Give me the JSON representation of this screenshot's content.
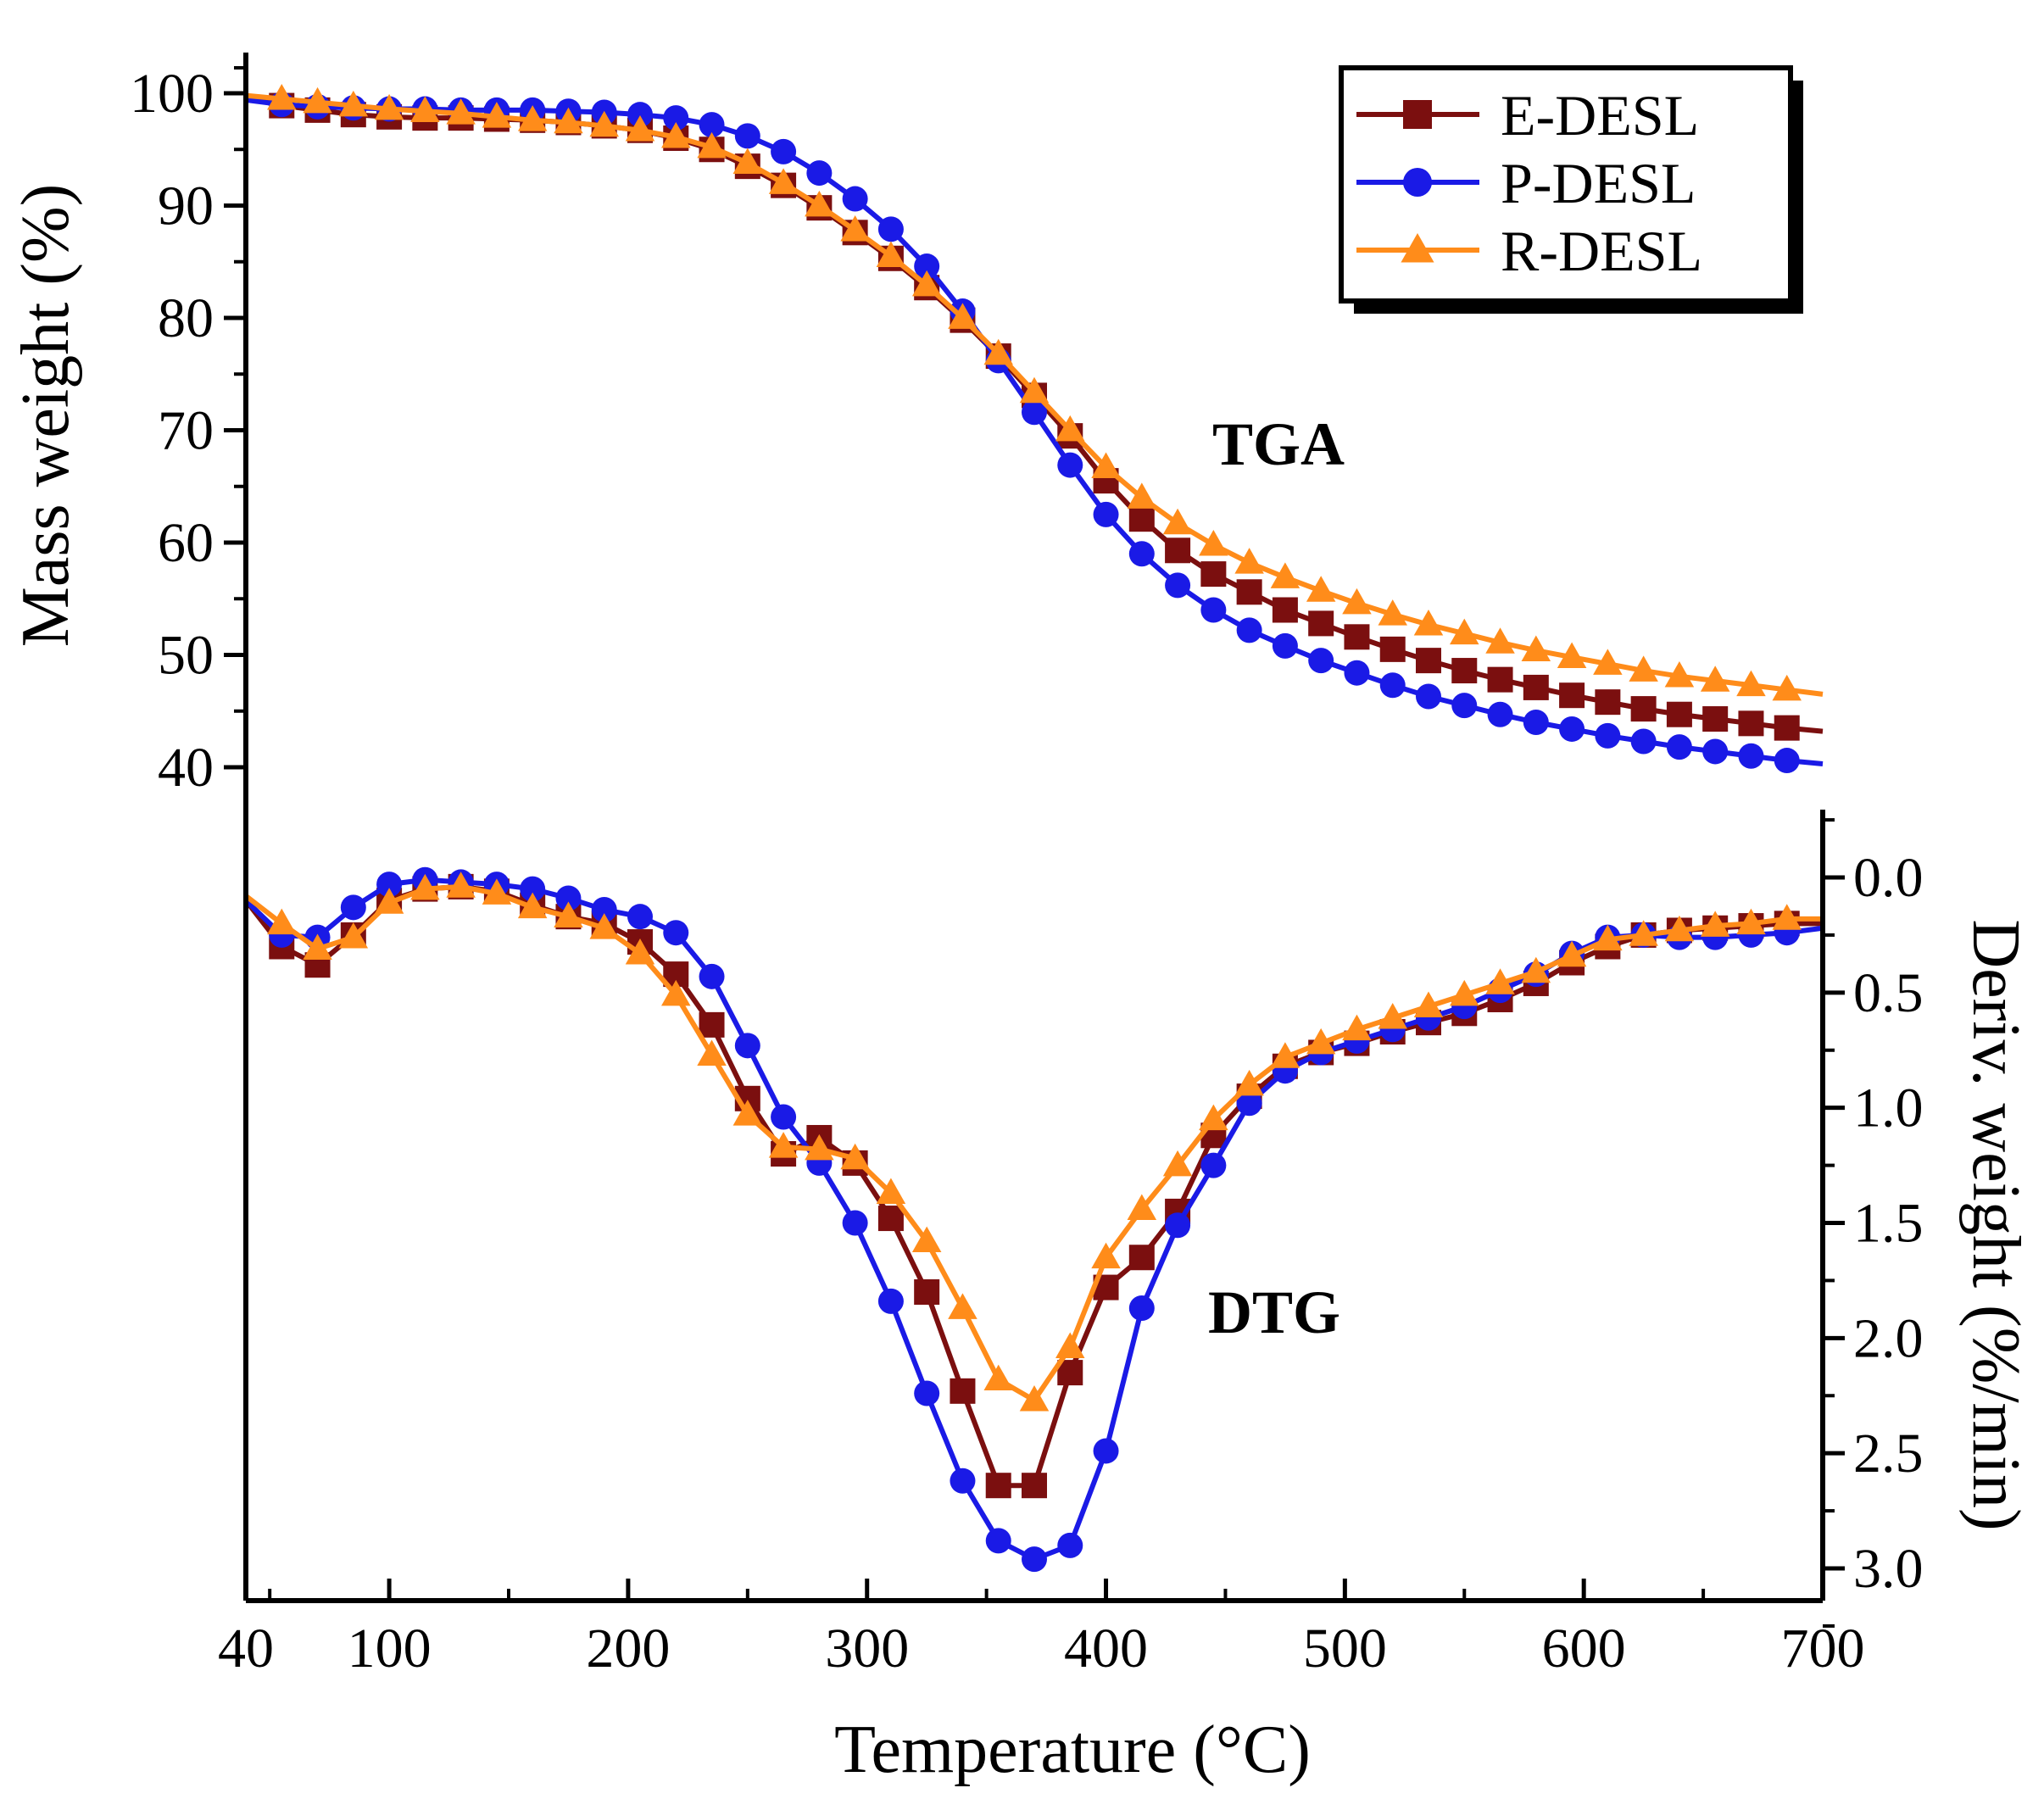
{
  "chart_data": {
    "type": "line",
    "xlabel": "Temperature (°C)",
    "ylabel_left": "Mass weight (%)",
    "ylabel_right": "Deriv. weight (%/min)",
    "xlim": [
      40,
      700
    ],
    "ylim_left": [
      40,
      100
    ],
    "ylim_right": [
      0.0,
      3.0
    ],
    "x_ticks": [
      40,
      100,
      200,
      300,
      400,
      500,
      600,
      700
    ],
    "y_left_ticks": [
      40,
      50,
      60,
      70,
      80,
      90,
      100
    ],
    "y_right_ticks": [
      "0.0",
      "0.5",
      "1.0",
      "1.5",
      "2.0",
      "2.5",
      "3.0"
    ],
    "annotations": {
      "tga": "TGA",
      "dtg": "DTG"
    },
    "legend_position": "top-right",
    "grid": false,
    "legend": [
      {
        "name": "E-DESL",
        "color": "#7b0f0f",
        "marker": "square"
      },
      {
        "name": "P-DESL",
        "color": "#1a1ae6",
        "marker": "circle"
      },
      {
        "name": "R-DESL",
        "color": "#ff8c1a",
        "marker": "triangle"
      }
    ],
    "tga_series": [
      {
        "name": "E-DESL",
        "color": "#7b0f0f",
        "marker": "square",
        "x": [
          40,
          55,
          70,
          85,
          100,
          115,
          130,
          145,
          160,
          175,
          190,
          205,
          220,
          235,
          250,
          265,
          280,
          295,
          310,
          325,
          340,
          355,
          370,
          385,
          400,
          415,
          430,
          445,
          460,
          475,
          490,
          505,
          520,
          535,
          550,
          565,
          580,
          595,
          610,
          625,
          640,
          655,
          670,
          685,
          700
        ],
        "y": [
          99.6,
          98.9,
          98.5,
          98.1,
          97.9,
          97.8,
          97.8,
          97.7,
          97.6,
          97.4,
          97.1,
          96.7,
          96.0,
          95.0,
          93.5,
          91.8,
          89.8,
          87.6,
          85.3,
          82.7,
          79.8,
          76.6,
          73.1,
          69.5,
          65.5,
          62.1,
          59.3,
          57.2,
          55.6,
          54.0,
          52.8,
          51.6,
          50.5,
          49.5,
          48.6,
          47.8,
          47.1,
          46.4,
          45.8,
          45.2,
          44.7,
          44.3,
          43.9,
          43.5,
          43.2
        ]
      },
      {
        "name": "P-DESL",
        "color": "#1a1ae6",
        "marker": "circle",
        "x": [
          40,
          55,
          70,
          85,
          100,
          115,
          130,
          145,
          160,
          175,
          190,
          205,
          220,
          235,
          250,
          265,
          280,
          295,
          310,
          325,
          340,
          355,
          370,
          385,
          400,
          415,
          430,
          445,
          460,
          475,
          490,
          505,
          520,
          535,
          550,
          565,
          580,
          595,
          610,
          625,
          640,
          655,
          670,
          685,
          700
        ],
        "y": [
          99.4,
          99.0,
          98.8,
          98.7,
          98.6,
          98.6,
          98.5,
          98.5,
          98.5,
          98.4,
          98.3,
          98.1,
          97.8,
          97.2,
          96.2,
          94.8,
          92.9,
          90.6,
          87.9,
          84.6,
          80.6,
          76.2,
          71.6,
          66.9,
          62.5,
          59.0,
          56.2,
          54.0,
          52.2,
          50.8,
          49.5,
          48.4,
          47.3,
          46.3,
          45.5,
          44.7,
          44.0,
          43.4,
          42.8,
          42.3,
          41.8,
          41.4,
          41.0,
          40.6,
          40.3
        ]
      },
      {
        "name": "R-DESL",
        "color": "#ff8c1a",
        "marker": "triangle",
        "x": [
          40,
          55,
          70,
          85,
          100,
          115,
          130,
          145,
          160,
          175,
          190,
          205,
          220,
          235,
          250,
          265,
          280,
          295,
          310,
          325,
          340,
          355,
          370,
          385,
          400,
          415,
          430,
          445,
          460,
          475,
          490,
          505,
          520,
          535,
          550,
          565,
          580,
          595,
          610,
          625,
          640,
          655,
          670,
          685,
          700
        ],
        "y": [
          99.8,
          99.5,
          99.2,
          98.9,
          98.6,
          98.4,
          98.2,
          97.9,
          97.6,
          97.4,
          97.1,
          96.7,
          96.1,
          95.2,
          93.8,
          92.0,
          90.0,
          87.8,
          85.5,
          82.9,
          80.0,
          76.8,
          73.4,
          70.0,
          66.7,
          64.0,
          61.7,
          59.8,
          58.2,
          56.9,
          55.7,
          54.6,
          53.6,
          52.7,
          51.9,
          51.1,
          50.4,
          49.8,
          49.2,
          48.6,
          48.1,
          47.7,
          47.3,
          46.9,
          46.5
        ]
      }
    ],
    "dtg_series": [
      {
        "name": "E-DESL",
        "color": "#7b0f0f",
        "marker": "square",
        "x": [
          40,
          55,
          70,
          85,
          100,
          115,
          130,
          145,
          160,
          175,
          190,
          205,
          220,
          235,
          250,
          265,
          280,
          295,
          310,
          325,
          340,
          355,
          370,
          385,
          400,
          415,
          430,
          445,
          460,
          475,
          490,
          505,
          520,
          535,
          550,
          565,
          580,
          595,
          610,
          625,
          640,
          655,
          670,
          685,
          700
        ],
        "y": [
          0.1,
          0.3,
          0.38,
          0.25,
          0.1,
          0.05,
          0.04,
          0.06,
          0.12,
          0.17,
          0.2,
          0.28,
          0.42,
          0.64,
          0.96,
          1.2,
          1.13,
          1.24,
          1.48,
          1.8,
          2.23,
          2.64,
          2.64,
          2.15,
          1.78,
          1.65,
          1.45,
          1.12,
          0.95,
          0.82,
          0.76,
          0.72,
          0.67,
          0.63,
          0.59,
          0.53,
          0.46,
          0.37,
          0.3,
          0.25,
          0.23,
          0.22,
          0.21,
          0.2,
          0.2
        ]
      },
      {
        "name": "P-DESL",
        "color": "#1a1ae6",
        "marker": "circle",
        "x": [
          40,
          55,
          70,
          85,
          100,
          115,
          130,
          145,
          160,
          175,
          190,
          205,
          220,
          235,
          250,
          265,
          280,
          295,
          310,
          325,
          340,
          355,
          370,
          385,
          400,
          415,
          430,
          445,
          460,
          475,
          490,
          505,
          520,
          535,
          550,
          565,
          580,
          595,
          610,
          625,
          640,
          655,
          670,
          685,
          700
        ],
        "y": [
          0.1,
          0.25,
          0.26,
          0.13,
          0.03,
          0.01,
          0.02,
          0.03,
          0.05,
          0.09,
          0.14,
          0.17,
          0.24,
          0.43,
          0.73,
          1.04,
          1.24,
          1.5,
          1.84,
          2.24,
          2.62,
          2.88,
          2.96,
          2.9,
          2.49,
          1.87,
          1.51,
          1.25,
          0.98,
          0.84,
          0.76,
          0.71,
          0.66,
          0.61,
          0.56,
          0.49,
          0.42,
          0.33,
          0.26,
          0.25,
          0.26,
          0.26,
          0.25,
          0.24,
          0.22
        ]
      },
      {
        "name": "R-DESL",
        "color": "#ff8c1a",
        "marker": "triangle",
        "x": [
          40,
          55,
          70,
          85,
          100,
          115,
          130,
          145,
          160,
          175,
          190,
          205,
          220,
          235,
          250,
          265,
          280,
          295,
          310,
          325,
          340,
          355,
          370,
          385,
          400,
          415,
          430,
          445,
          460,
          475,
          490,
          505,
          520,
          535,
          550,
          565,
          580,
          595,
          610,
          625,
          640,
          655,
          670,
          685,
          700
        ],
        "y": [
          0.08,
          0.2,
          0.31,
          0.26,
          0.11,
          0.05,
          0.04,
          0.07,
          0.13,
          0.17,
          0.22,
          0.33,
          0.51,
          0.77,
          1.03,
          1.17,
          1.18,
          1.22,
          1.37,
          1.58,
          1.87,
          2.18,
          2.27,
          2.04,
          1.65,
          1.44,
          1.25,
          1.05,
          0.9,
          0.78,
          0.72,
          0.66,
          0.61,
          0.56,
          0.51,
          0.46,
          0.41,
          0.34,
          0.27,
          0.25,
          0.23,
          0.21,
          0.2,
          0.18,
          0.18
        ]
      }
    ]
  }
}
